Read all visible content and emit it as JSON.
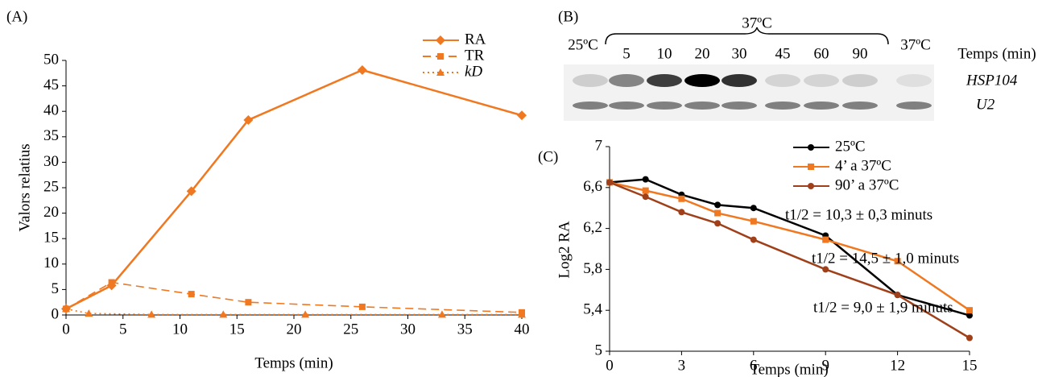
{
  "chart_data": [
    {
      "type": "line",
      "label": "(A)",
      "xlabel": "Temps (min)",
      "ylabel": "Valors relatius",
      "xlim": [
        0,
        40
      ],
      "xticks": [
        0,
        5,
        10,
        15,
        20,
        25,
        30,
        35,
        40
      ],
      "ylim": [
        0,
        50
      ],
      "yticks": [
        0,
        5,
        10,
        15,
        20,
        25,
        30,
        35,
        40,
        45,
        50
      ],
      "series": [
        {
          "name": "RA",
          "color": "#f07820",
          "dash": "solid",
          "marker": "diamond",
          "x": [
            0,
            4,
            11,
            16,
            26,
            40
          ],
          "values": [
            1.2,
            5.8,
            24.3,
            38.3,
            48.1,
            39.2
          ]
        },
        {
          "name": "TR",
          "color": "#f07820",
          "dash": "dashed",
          "marker": "square",
          "x": [
            0,
            4,
            11,
            16,
            26,
            40
          ],
          "values": [
            1.2,
            6.4,
            4.1,
            2.5,
            1.6,
            0.5
          ]
        },
        {
          "name": "kD",
          "color": "#f07820",
          "dash": "dotted",
          "marker": "triangle",
          "x": [
            0,
            2,
            7.5,
            13.8,
            21,
            33,
            40
          ],
          "values": [
            1.2,
            0.3,
            0.1,
            0.1,
            0.1,
            0.1,
            0.1
          ]
        }
      ]
    },
    {
      "type": "line",
      "label": "(C)",
      "xlabel": "Temps (min)",
      "ylabel": "Log2 RA",
      "xlim": [
        0,
        15
      ],
      "xticks": [
        0,
        3,
        6,
        9,
        12,
        15
      ],
      "ylim": [
        5,
        7
      ],
      "yticks": [
        5,
        {
          "value": 5.4,
          "label": "5,4"
        },
        {
          "value": 5.8,
          "label": "5,8"
        },
        {
          "value": 6.2,
          "label": "6,2"
        },
        {
          "value": 6.6,
          "label": "6,6"
        },
        7
      ],
      "series": [
        {
          "name": "25ºC",
          "color": "#000000",
          "dash": "solid",
          "marker": "circle",
          "x": [
            0,
            1.5,
            3,
            4.5,
            6,
            9,
            12,
            15
          ],
          "values": [
            6.65,
            6.68,
            6.53,
            6.43,
            6.4,
            6.13,
            5.55,
            5.35
          ]
        },
        {
          "name": "4’ a 37ºC",
          "color": "#f07820",
          "dash": "solid",
          "marker": "square",
          "x": [
            0,
            1.5,
            3,
            4.5,
            6,
            9,
            12,
            15
          ],
          "values": [
            6.65,
            6.57,
            6.49,
            6.35,
            6.27,
            6.09,
            5.88,
            5.4
          ]
        },
        {
          "name": "90’ a 37ºC",
          "color": "#a0401a",
          "dash": "solid",
          "marker": "circle",
          "x": [
            0,
            1.5,
            3,
            4.5,
            6,
            9,
            12,
            15
          ],
          "values": [
            6.65,
            6.51,
            6.36,
            6.25,
            6.09,
            5.8,
            5.55,
            5.13
          ]
        }
      ],
      "annotations": [
        {
          "text": "t1/2 = 10,3 ± 0,3 minuts",
          "color": "#000000"
        },
        {
          "text": "t1/2 = 14,5 ± 1,0 minuts",
          "color": "#f07820"
        },
        {
          "text": "t1/2 = 9,0 ± 1,9 minuts",
          "color": "#a0401a"
        }
      ]
    }
  ],
  "gel": {
    "label": "(B)",
    "heat": "37ºC",
    "control": "25ºC",
    "lanes": [
      "5",
      "10",
      "20",
      "30",
      "45",
      "60",
      "90"
    ],
    "recovery": "37ºC",
    "time_label": "Temps (min)",
    "genes": [
      "HSP104",
      "U2"
    ]
  }
}
